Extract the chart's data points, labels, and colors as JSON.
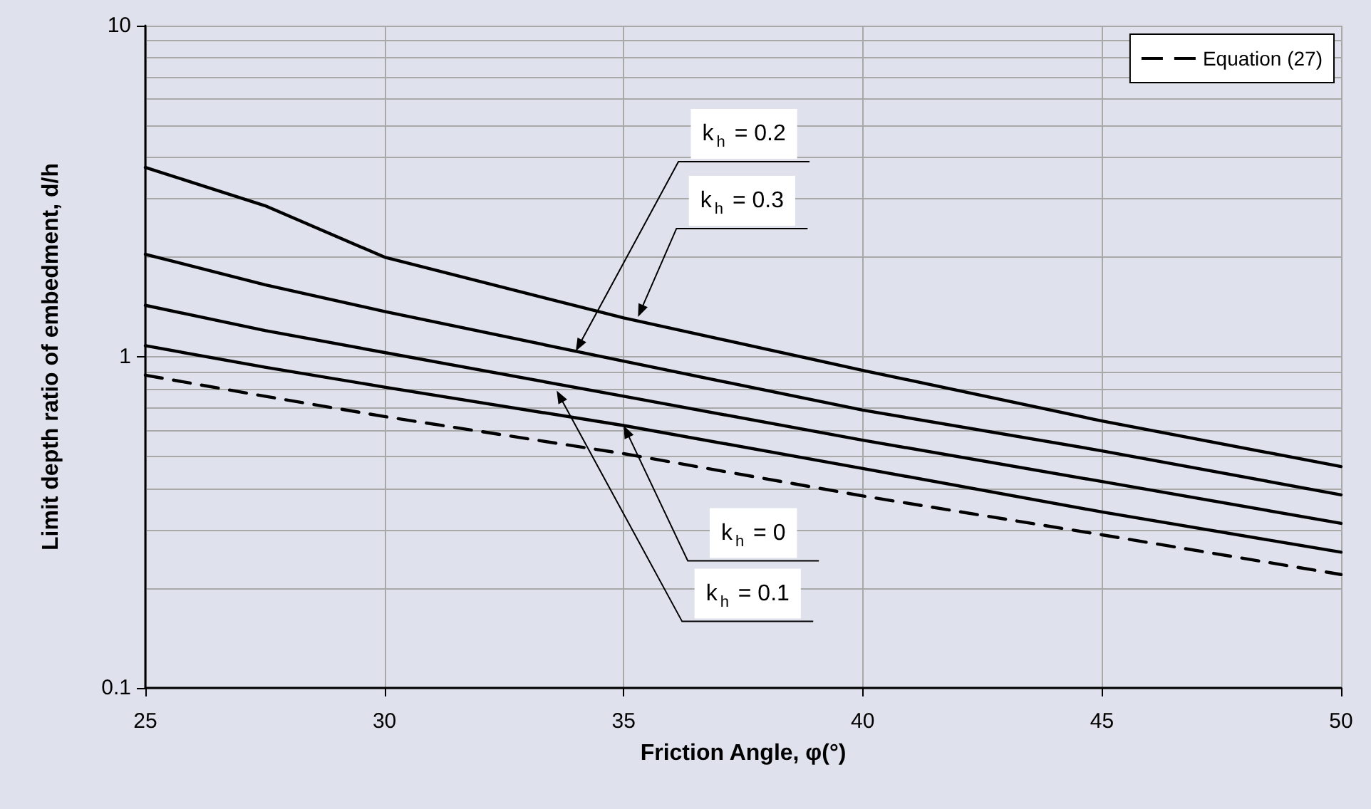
{
  "chart_data": {
    "type": "line",
    "xlabel": "Friction Angle, φ(°)",
    "ylabel": "Limit depth ratio of embedment, d/h",
    "xlim": [
      25,
      50
    ],
    "xticks": [
      25,
      30,
      35,
      40,
      45,
      50
    ],
    "ylim": [
      0.1,
      10
    ],
    "yticks": [
      0.1,
      {
        "value": 0.2,
        "label": null
      },
      {
        "value": 0.3,
        "label": null
      },
      {
        "value": 0.4,
        "label": null
      },
      {
        "value": 0.5,
        "label": null
      },
      {
        "value": 0.6,
        "label": null
      },
      {
        "value": 0.7,
        "label": null
      },
      {
        "value": 0.8,
        "label": null
      },
      {
        "value": 0.9,
        "label": null
      },
      1,
      {
        "value": 2,
        "label": null
      },
      {
        "value": 3,
        "label": null
      },
      {
        "value": 4,
        "label": null
      },
      {
        "value": 5,
        "label": null
      },
      {
        "value": 6,
        "label": null
      },
      {
        "value": 7,
        "label": null
      },
      {
        "value": 8,
        "label": null
      },
      {
        "value": 9,
        "label": null
      },
      10
    ],
    "log": "y",
    "grid": true,
    "legend": "top right",
    "marker": "none",
    "x": [
      25,
      27.5,
      30,
      35,
      40,
      45,
      50
    ],
    "series": [
      {
        "color": "#000000",
        "line_style": "solid",
        "values": [
          3.73,
          2.86,
          2.0,
          1.31,
          0.91,
          0.64,
          0.466
        ]
      },
      {
        "color": "#000000",
        "line_style": "solid",
        "values": [
          2.04,
          1.65,
          1.37,
          0.97,
          0.69,
          0.52,
          0.383
        ]
      },
      {
        "color": "#000000",
        "line_style": "solid",
        "values": [
          1.43,
          1.2,
          1.03,
          0.76,
          0.56,
          0.42,
          0.314
        ]
      },
      {
        "color": "#000000",
        "line_style": "solid",
        "values": [
          1.08,
          0.93,
          0.81,
          0.62,
          0.46,
          0.34,
          0.257
        ]
      },
      {
        "name": "Equation (27)",
        "color": "#000000",
        "line_style": "dashed",
        "values": [
          0.88,
          0.76,
          0.66,
          0.51,
          0.38,
          0.29,
          0.22
        ]
      }
    ],
    "annotations": [
      {
        "text": "k$_{h}$ = 0.2",
        "x": 34.0,
        "y": 1.04
      },
      {
        "text": "k$_{h}$ = 0.3",
        "x": 35.3,
        "y": 1.32
      },
      {
        "text": "k$_{h}$ = 0",
        "x": 35,
        "y": 0.62
      },
      {
        "text": "k$_{h}$ = 0.1",
        "x": 33.6,
        "y": 0.79
      }
    ]
  }
}
